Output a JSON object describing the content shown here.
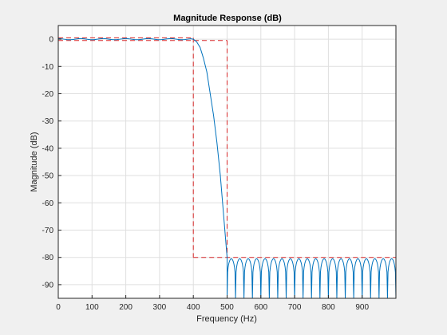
{
  "chart_data": {
    "type": "line",
    "title": "Magnitude Response (dB)",
    "xlabel": "Frequency (Hz)",
    "ylabel": "Magnitude (dB)",
    "xlim": [
      0,
      1000
    ],
    "ylim": [
      -95,
      5
    ],
    "grid": true,
    "x_ticks": [
      0,
      100,
      200,
      300,
      400,
      500,
      600,
      700,
      800,
      900
    ],
    "y_ticks": [
      0,
      -10,
      -20,
      -30,
      -40,
      -50,
      -60,
      -70,
      -80,
      -90
    ],
    "x_tick_labels": [
      "0",
      "100",
      "200",
      "300",
      "400",
      "500",
      "600",
      "700",
      "800",
      "900"
    ],
    "y_tick_labels": [
      "0",
      "-10",
      "-20",
      "-30",
      "-40",
      "-50",
      "-60",
      "-70",
      "-80",
      "-90"
    ],
    "passband_edge_hz": 400,
    "stopband_edge_hz": 500,
    "passband_ripple_db": 0.5,
    "stopband_attenuation_db": -80,
    "series": [
      {
        "role": "magnitude-response",
        "color": "#0072bd",
        "x": [
          0,
          100,
          200,
          300,
          380,
          400,
          410,
          420,
          430,
          440,
          450,
          460,
          470,
          480,
          490,
          500
        ],
        "y": [
          0.2,
          0.2,
          0.2,
          0.2,
          0.2,
          0,
          -1,
          -3,
          -7,
          -12,
          -20,
          -28,
          -38,
          -50,
          -65,
          -80
        ],
        "stopband_lobes": {
          "start_hz": 500,
          "end_hz": 1000,
          "count": 20,
          "peak_db": -80.5,
          "floor_db": -95
        }
      },
      {
        "role": "specification-mask",
        "color": "#d62728",
        "style": "dashed",
        "segments": [
          {
            "x": [
              0,
              400
            ],
            "y": [
              0.5,
              0.5
            ]
          },
          {
            "x": [
              0,
              500
            ],
            "y": [
              -0.5,
              -0.5
            ]
          },
          {
            "x": [
              400,
              400
            ],
            "y": [
              0.5,
              -80
            ]
          },
          {
            "x": [
              500,
              500
            ],
            "y": [
              -0.5,
              -80
            ]
          },
          {
            "x": [
              400,
              1000
            ],
            "y": [
              -80,
              -80
            ]
          }
        ]
      }
    ]
  }
}
